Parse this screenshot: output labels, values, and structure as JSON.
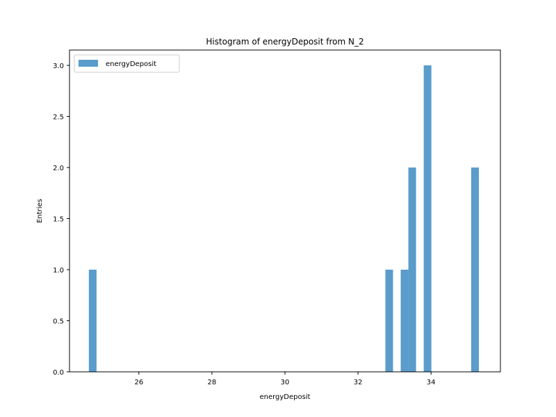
{
  "chart_data": {
    "type": "bar",
    "title": "Histogram of energyDeposit from N_2",
    "xlabel": "energyDeposit",
    "ylabel": "Entries",
    "xlim": [
      24.1,
      35.9
    ],
    "ylim": [
      0,
      3.15
    ],
    "xticks": [
      26,
      28,
      30,
      32,
      34
    ],
    "yticks": [
      0.0,
      0.5,
      1.0,
      1.5,
      2.0,
      2.5,
      3.0
    ],
    "xtick_labels": [
      "26",
      "28",
      "30",
      "32",
      "34"
    ],
    "ytick_labels": [
      "0.0",
      "0.5",
      "1.0",
      "1.5",
      "2.0",
      "2.5",
      "3.0"
    ],
    "bin_width": 0.21,
    "legend": {
      "entries": [
        "energyDeposit"
      ],
      "placement": "upper-left"
    },
    "grid": false,
    "series": [
      {
        "name": "energyDeposit",
        "color": "#5a9ccb",
        "bins": [
          {
            "x0": 24.63,
            "x1": 24.84,
            "value": 1
          },
          {
            "x0": 32.75,
            "x1": 32.96,
            "value": 1
          },
          {
            "x0": 33.17,
            "x1": 33.38,
            "value": 1
          },
          {
            "x0": 33.38,
            "x1": 33.59,
            "value": 2
          },
          {
            "x0": 33.8,
            "x1": 34.01,
            "value": 3
          },
          {
            "x0": 35.1,
            "x1": 35.31,
            "value": 2
          }
        ]
      }
    ]
  }
}
